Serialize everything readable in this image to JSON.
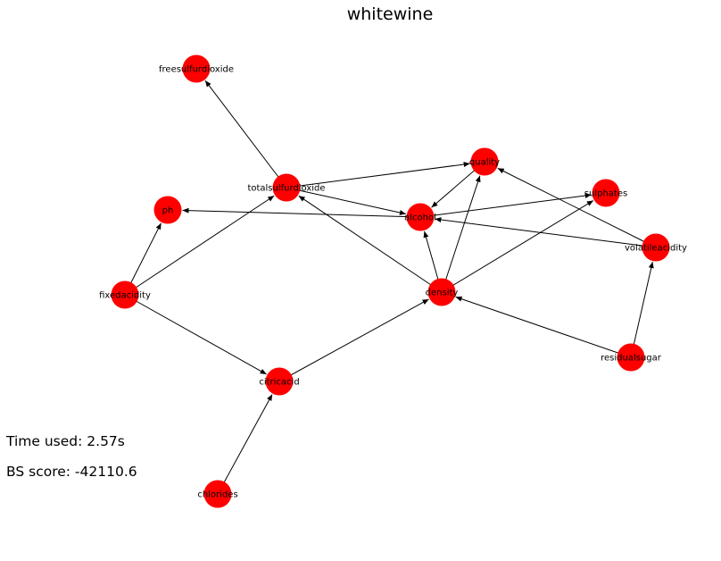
{
  "title": "whitewine",
  "stats": {
    "time_used": "Time used: 2.57s",
    "bs_score": "BS score: -42110.6"
  },
  "colors": {
    "node": "#ff0000",
    "edge": "#000000"
  },
  "graph": {
    "nodes": [
      {
        "id": "freesulfurdioxide",
        "label": "freesulfurdioxide"
      },
      {
        "id": "quality",
        "label": "quality"
      },
      {
        "id": "totalsulfurdioxide",
        "label": "totalsulfurdioxide"
      },
      {
        "id": "sulphates",
        "label": "sulphates"
      },
      {
        "id": "ph",
        "label": "ph"
      },
      {
        "id": "alcohol",
        "label": "alcohol"
      },
      {
        "id": "volatileacidity",
        "label": "volatileacidity"
      },
      {
        "id": "fixedacidity",
        "label": "fixedacidity"
      },
      {
        "id": "density",
        "label": "density"
      },
      {
        "id": "residualsugar",
        "label": "residualsugar"
      },
      {
        "id": "citricacid",
        "label": "citricacid"
      },
      {
        "id": "chlorides",
        "label": "chlorides"
      }
    ],
    "edges": [
      {
        "source": "totalsulfurdioxide",
        "target": "freesulfurdioxide"
      },
      {
        "source": "totalsulfurdioxide",
        "target": "quality"
      },
      {
        "source": "totalsulfurdioxide",
        "target": "alcohol"
      },
      {
        "source": "fixedacidity",
        "target": "totalsulfurdioxide"
      },
      {
        "source": "fixedacidity",
        "target": "ph"
      },
      {
        "source": "fixedacidity",
        "target": "citricacid"
      },
      {
        "source": "citricacid",
        "target": "density"
      },
      {
        "source": "chlorides",
        "target": "citricacid"
      },
      {
        "source": "density",
        "target": "totalsulfurdioxide"
      },
      {
        "source": "density",
        "target": "alcohol"
      },
      {
        "source": "density",
        "target": "quality"
      },
      {
        "source": "density",
        "target": "sulphates"
      },
      {
        "source": "quality",
        "target": "alcohol"
      },
      {
        "source": "alcohol",
        "target": "ph"
      },
      {
        "source": "alcohol",
        "target": "sulphates"
      },
      {
        "source": "volatileacidity",
        "target": "alcohol"
      },
      {
        "source": "volatileacidity",
        "target": "quality"
      },
      {
        "source": "residualsugar",
        "target": "volatileacidity"
      },
      {
        "source": "residualsugar",
        "target": "density"
      }
    ]
  }
}
